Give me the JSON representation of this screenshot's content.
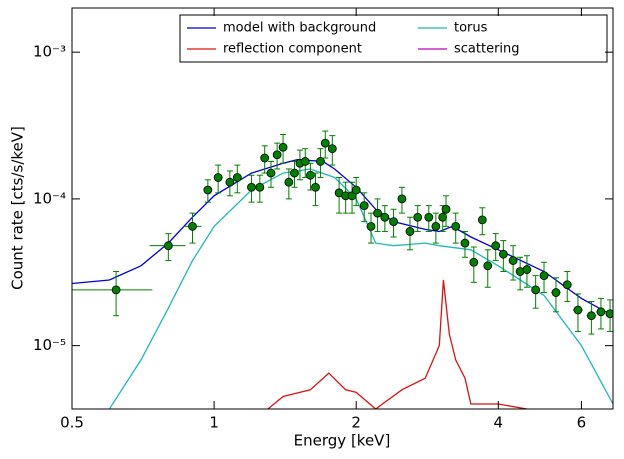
{
  "chart_data": {
    "type": "line",
    "xlabel": "Energy [keV]",
    "ylabel": "Count rate [cts/s/keV]",
    "log_x": true,
    "log_y": true,
    "xlim": [
      0.5,
      7
    ],
    "ylim": [
      3.7e-06,
      0.002
    ],
    "xticks": [
      0.5,
      1,
      2,
      4,
      6
    ],
    "yticks": [
      {
        "value": 0.001,
        "label": "10⁻³"
      },
      {
        "value": 0.0001,
        "label": "10⁻⁴"
      },
      {
        "value": 1e-05,
        "label": "10⁻⁵"
      }
    ],
    "legend": "upper right",
    "series": [
      {
        "name": "model with background",
        "color": "#0000dd",
        "x": [
          0.5,
          0.6,
          0.7,
          0.8,
          0.9,
          1.0,
          1.2,
          1.4,
          1.5,
          1.7,
          1.8,
          2.0,
          2.2,
          2.4,
          2.8,
          3.0,
          3.2,
          3.5,
          4.0,
          5.0,
          6.0,
          7.0
        ],
        "values": [
          2.65e-05,
          2.8e-05,
          3.5e-05,
          5e-05,
          7.5e-05,
          0.000105,
          0.00015,
          0.000175,
          0.000185,
          0.00018,
          0.00016,
          0.00012,
          8.5e-05,
          7e-05,
          6.2e-05,
          6e-05,
          6.5e-05,
          5.5e-05,
          4.5e-05,
          3.2e-05,
          2.1e-05,
          1.6e-05
        ]
      },
      {
        "name": "torus",
        "color": "#1fb8b8",
        "x": [
          0.6,
          0.7,
          0.8,
          0.9,
          1.0,
          1.2,
          1.4,
          1.6,
          1.8,
          2.0,
          2.2,
          2.4,
          2.8,
          3.0,
          3.5,
          4.0,
          5.0,
          6.0,
          7.0
        ],
        "values": [
          3.7e-06,
          8e-06,
          1.8e-05,
          3.8e-05,
          6.5e-05,
          0.000115,
          0.00015,
          0.00016,
          0.00014,
          0.0001,
          5e-05,
          4.8e-05,
          5e-05,
          4.8e-05,
          4.5e-05,
          3.5e-05,
          2.2e-05,
          1e-05,
          4e-06
        ]
      },
      {
        "name": "reflection component",
        "color": "#dd1111",
        "x": [
          1.3,
          1.4,
          1.6,
          1.75,
          1.9,
          2.0,
          2.2,
          2.5,
          2.8,
          3.0,
          3.06,
          3.15,
          3.25,
          3.4,
          3.5,
          4.0,
          4.6
        ],
        "values": [
          3.7e-06,
          4.5e-06,
          5e-06,
          6.5e-06,
          5e-06,
          4.8e-06,
          3.7e-06,
          5e-06,
          6e-06,
          1e-05,
          2.8e-05,
          1.2e-05,
          8e-06,
          6e-06,
          4e-06,
          4e-06,
          3.7e-06
        ]
      },
      {
        "name": "scattering",
        "color": "#bb00bb",
        "x": [],
        "values": []
      }
    ],
    "points": {
      "color": "#008000",
      "x": [
        0.62,
        0.8,
        0.9,
        0.97,
        1.02,
        1.08,
        1.12,
        1.2,
        1.25,
        1.28,
        1.32,
        1.36,
        1.4,
        1.44,
        1.48,
        1.52,
        1.56,
        1.6,
        1.64,
        1.68,
        1.72,
        1.78,
        1.84,
        1.9,
        1.96,
        2.0,
        2.08,
        2.15,
        2.22,
        2.3,
        2.4,
        2.5,
        2.6,
        2.7,
        2.85,
        2.95,
        3.05,
        3.1,
        3.25,
        3.4,
        3.55,
        3.7,
        3.8,
        3.95,
        4.1,
        4.3,
        4.45,
        4.6,
        4.8,
        5.0,
        5.3,
        5.6,
        5.9,
        6.3,
        6.6,
        6.9
      ],
      "values": [
        2.4e-05,
        4.8e-05,
        6.5e-05,
        0.000115,
        0.00014,
        0.00013,
        0.00014,
        0.00012,
        0.00012,
        0.00019,
        0.00015,
        0.0002,
        0.000225,
        0.00013,
        0.00015,
        0.000175,
        0.00018,
        0.000145,
        0.00012,
        0.00018,
        0.00024,
        0.00022,
        0.00011,
        0.000105,
        0.000105,
        0.000115,
        9e-05,
        6.5e-05,
        8e-05,
        7.5e-05,
        7e-05,
        0.0001,
        6e-05,
        7.5e-05,
        7.5e-05,
        6.5e-05,
        7.5e-05,
        8.5e-05,
        6.5e-05,
        5e-05,
        3.7e-05,
        7.2e-05,
        3.5e-05,
        4.8e-05,
        4.2e-05,
        3.8e-05,
        3.2e-05,
        3.3e-05,
        2.4e-05,
        3e-05,
        2.3e-05,
        2.6e-05,
        1.75e-05,
        1.6e-05,
        1.7e-05,
        1.65e-05
      ],
      "yerr": [
        8e-06,
        1e-05,
        1.5e-05,
        2e-05,
        3e-05,
        2.5e-05,
        3e-05,
        2.5e-05,
        2.5e-05,
        4e-05,
        3e-05,
        4e-05,
        5e-05,
        3e-05,
        3e-05,
        4e-05,
        4e-05,
        3e-05,
        3e-05,
        4e-05,
        5e-05,
        5e-05,
        3e-05,
        2.5e-05,
        2.5e-05,
        2.5e-05,
        2e-05,
        1.5e-05,
        2e-05,
        1.5e-05,
        1.5e-05,
        2e-05,
        1.5e-05,
        1.5e-05,
        1.5e-05,
        1.5e-05,
        1.5e-05,
        2e-05,
        1.5e-05,
        1e-05,
        1e-05,
        1.5e-05,
        1e-05,
        1e-05,
        1e-05,
        1e-05,
        8e-06,
        8e-06,
        6e-06,
        7e-06,
        6e-06,
        6e-06,
        5e-06,
        4e-06,
        4e-06,
        4e-06
      ],
      "xerr": [
        0.12,
        0.07,
        0.04,
        0.02,
        0.02,
        0.02,
        0.02,
        0.02,
        0.02,
        0.02,
        0.02,
        0.02,
        0.02,
        0.02,
        0.02,
        0.02,
        0.02,
        0.02,
        0.02,
        0.02,
        0.02,
        0.02,
        0.02,
        0.03,
        0.03,
        0.03,
        0.03,
        0.03,
        0.03,
        0.04,
        0.04,
        0.04,
        0.04,
        0.05,
        0.05,
        0.05,
        0.03,
        0.03,
        0.06,
        0.06,
        0.06,
        0.06,
        0.06,
        0.07,
        0.07,
        0.08,
        0.08,
        0.08,
        0.09,
        0.1,
        0.12,
        0.12,
        0.14,
        0.15,
        0.15,
        0.15
      ]
    }
  }
}
